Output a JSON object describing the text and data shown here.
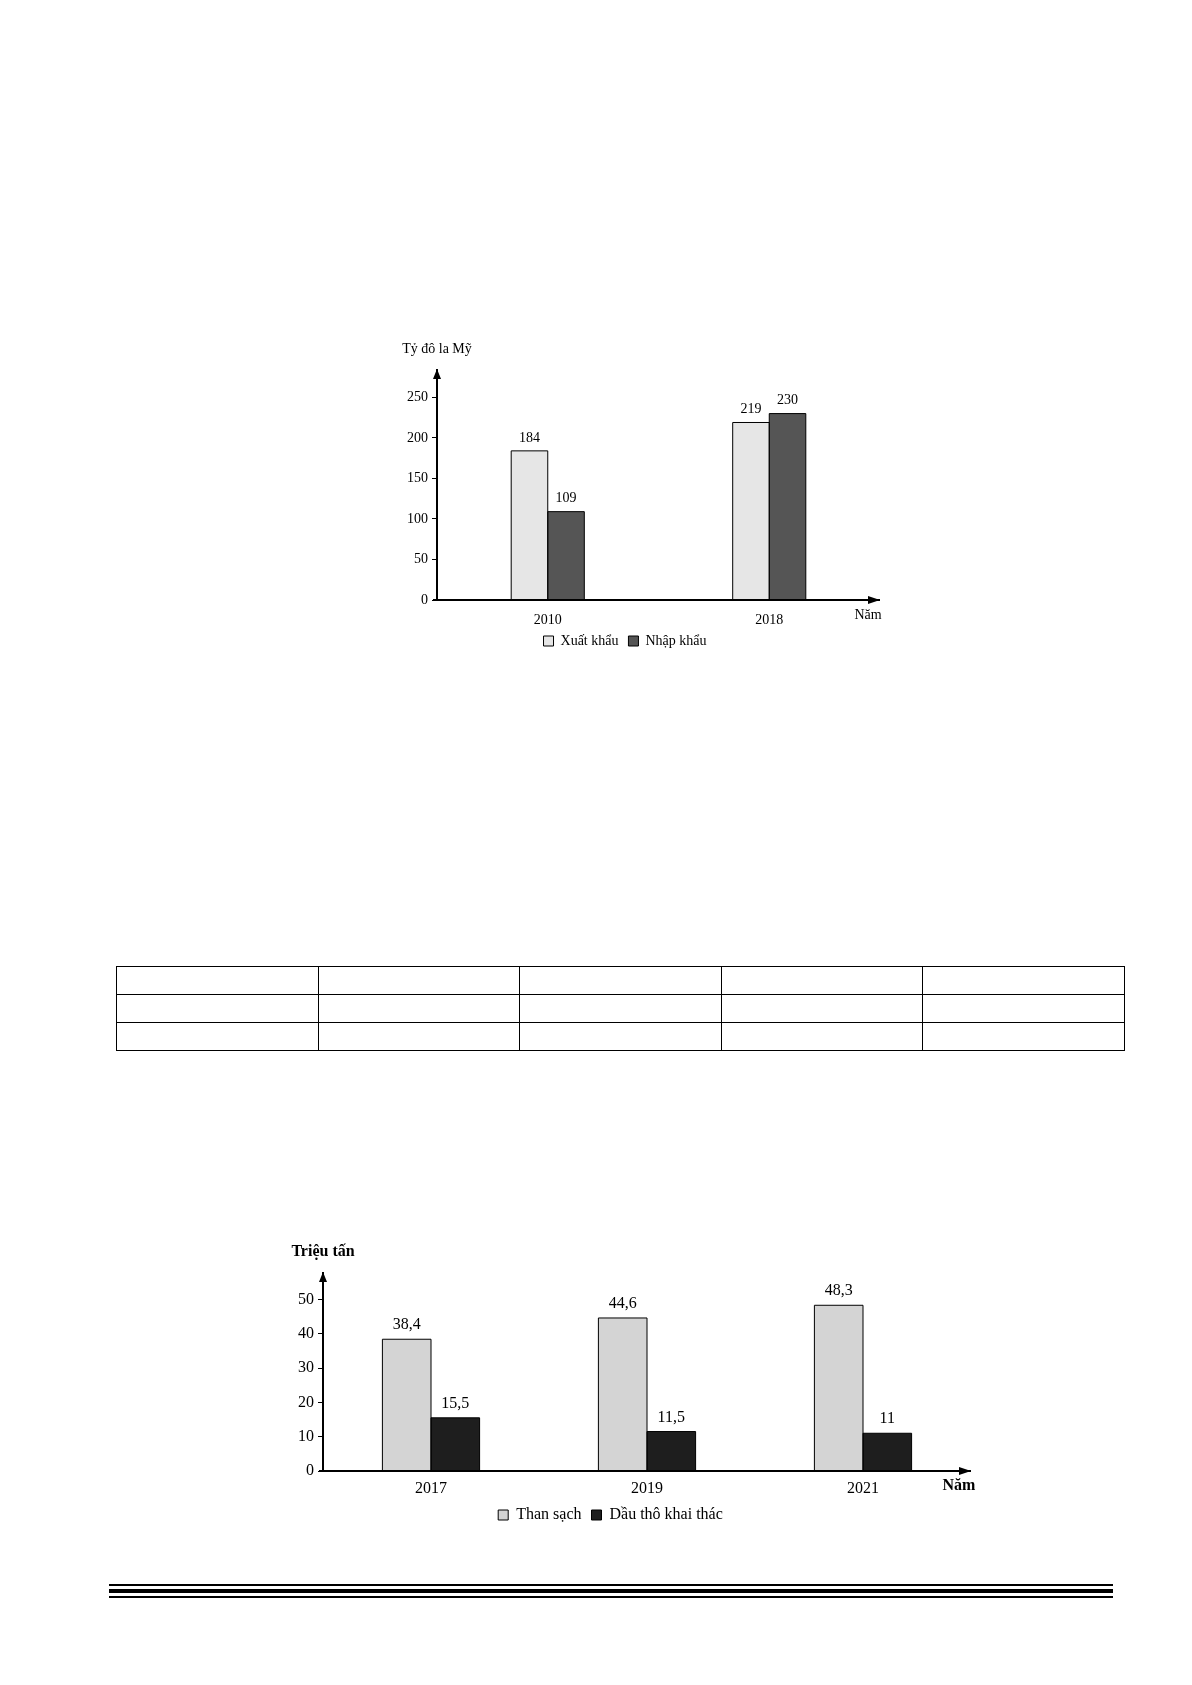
{
  "chart_data": [
    {
      "type": "bar",
      "ylabel": "Tỷ đô la Mỹ",
      "xlabel": "Năm",
      "categories": [
        "2010",
        "2018"
      ],
      "series": [
        {
          "name": "Xuất khẩu",
          "color": "#e6e6e6",
          "values": [
            184,
            219
          ]
        },
        {
          "name": "Nhập khẩu",
          "color": "#555555",
          "values": [
            109,
            230
          ]
        }
      ],
      "ylim": [
        0,
        285
      ],
      "yticks": [
        0,
        50,
        100,
        150,
        200,
        250
      ],
      "data_labels": true,
      "legend": "bottom"
    },
    {
      "type": "bar",
      "ylabel": "Triệu tấn",
      "xlabel": "Năm",
      "categories": [
        "2017",
        "2019",
        "2021"
      ],
      "series": [
        {
          "name": "Than sạch",
          "color": "#d4d4d4",
          "values": [
            38.4,
            44.6,
            48.3
          ],
          "value_labels": [
            "38,4",
            "44,6",
            "48,3"
          ]
        },
        {
          "name": "Dầu thô khai thác",
          "color": "#1e1e1e",
          "values": [
            15.5,
            11.5,
            11
          ],
          "value_labels": [
            "15,5",
            "11,5",
            "11"
          ]
        }
      ],
      "ylim": [
        0,
        58
      ],
      "yticks": [
        0,
        10,
        20,
        30,
        40,
        50
      ],
      "legend": "bottom"
    }
  ]
}
